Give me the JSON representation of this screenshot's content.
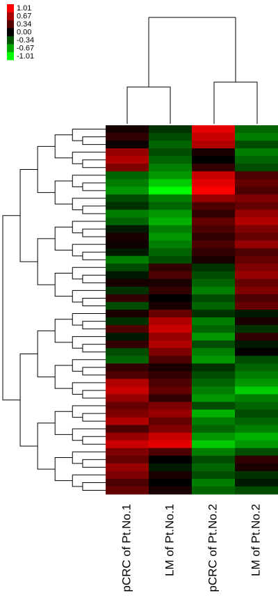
{
  "chart_data": {
    "type": "heatmap",
    "columns": [
      "pCRC of Pt.No.1",
      "LM of Pt.No.1",
      "pCRC of Pt.No.2",
      "LM of Pt.No.2"
    ],
    "values": [
      [
        0.1,
        -0.2,
        0.9,
        -0.4
      ],
      [
        0.2,
        -0.3,
        0.8,
        -0.5
      ],
      [
        0.05,
        -0.4,
        0.7,
        -0.3
      ],
      [
        0.6,
        -0.3,
        0.1,
        -0.5
      ],
      [
        0.7,
        -0.4,
        0.0,
        -0.4
      ],
      [
        0.5,
        -0.5,
        0.2,
        -0.3
      ],
      [
        -0.4,
        -0.6,
        0.8,
        0.3
      ],
      [
        -0.5,
        -0.8,
        0.9,
        0.4
      ],
      [
        -0.6,
        -1.0,
        1.0,
        0.3
      ],
      [
        -0.3,
        -0.5,
        0.6,
        0.5
      ],
      [
        -0.2,
        -0.4,
        0.3,
        0.4
      ],
      [
        -0.5,
        -0.6,
        0.2,
        0.6
      ],
      [
        -0.4,
        -0.7,
        0.4,
        0.7
      ],
      [
        -0.1,
        -0.5,
        0.3,
        0.5
      ],
      [
        0.1,
        -0.6,
        0.2,
        0.4
      ],
      [
        0.05,
        -0.5,
        0.3,
        0.6
      ],
      [
        -0.1,
        -0.4,
        0.2,
        0.3
      ],
      [
        -0.5,
        -0.3,
        0.1,
        0.4
      ],
      [
        -0.3,
        0.2,
        -0.2,
        0.5
      ],
      [
        -0.1,
        0.3,
        -0.3,
        0.6
      ],
      [
        0.1,
        0.1,
        -0.4,
        0.4
      ],
      [
        -0.2,
        0.2,
        -0.5,
        0.5
      ],
      [
        0.2,
        0.0,
        -0.3,
        0.3
      ],
      [
        -0.3,
        0.1,
        -0.4,
        0.4
      ],
      [
        0.1,
        0.4,
        -0.2,
        -0.1
      ],
      [
        -0.2,
        0.7,
        -0.5,
        0.1
      ],
      [
        0.3,
        0.8,
        -0.4,
        -0.2
      ],
      [
        -0.1,
        0.6,
        -0.6,
        0.2
      ],
      [
        0.2,
        0.7,
        -0.3,
        -0.1
      ],
      [
        -0.3,
        0.5,
        -0.5,
        0.0
      ],
      [
        -0.4,
        0.3,
        -0.6,
        -0.3
      ],
      [
        0.2,
        0.1,
        -0.2,
        -0.4
      ],
      [
        0.3,
        0.2,
        -0.3,
        -0.5
      ],
      [
        0.7,
        0.3,
        -0.4,
        -0.6
      ],
      [
        0.8,
        0.4,
        -0.5,
        -0.8
      ],
      [
        0.6,
        0.2,
        -0.6,
        -0.5
      ],
      [
        0.4,
        0.5,
        -0.3,
        -0.4
      ],
      [
        0.5,
        0.6,
        -0.7,
        -0.3
      ],
      [
        0.7,
        0.4,
        -0.5,
        -0.4
      ],
      [
        0.3,
        0.5,
        -0.4,
        -0.5
      ],
      [
        0.6,
        0.8,
        -0.6,
        -0.7
      ],
      [
        0.8,
        0.9,
        -0.8,
        -0.6
      ],
      [
        0.5,
        0.3,
        -0.5,
        -0.3
      ],
      [
        0.4,
        0.0,
        -0.3,
        0.2
      ],
      [
        0.6,
        -0.1,
        -0.4,
        0.1
      ],
      [
        0.5,
        0.1,
        -0.3,
        -0.2
      ],
      [
        0.3,
        0.0,
        -0.5,
        -0.1
      ],
      [
        0.4,
        0.1,
        -0.4,
        -0.3
      ]
    ],
    "colorscale": {
      "low": "#00ff00",
      "mid": "#000000",
      "high": "#ff0000"
    },
    "colorbar_ticks": [
      1.01,
      0.67,
      0.34,
      {
        "value": 0,
        "label": "0.00"
      },
      -0.34,
      -0.67,
      -1.01
    ]
  }
}
